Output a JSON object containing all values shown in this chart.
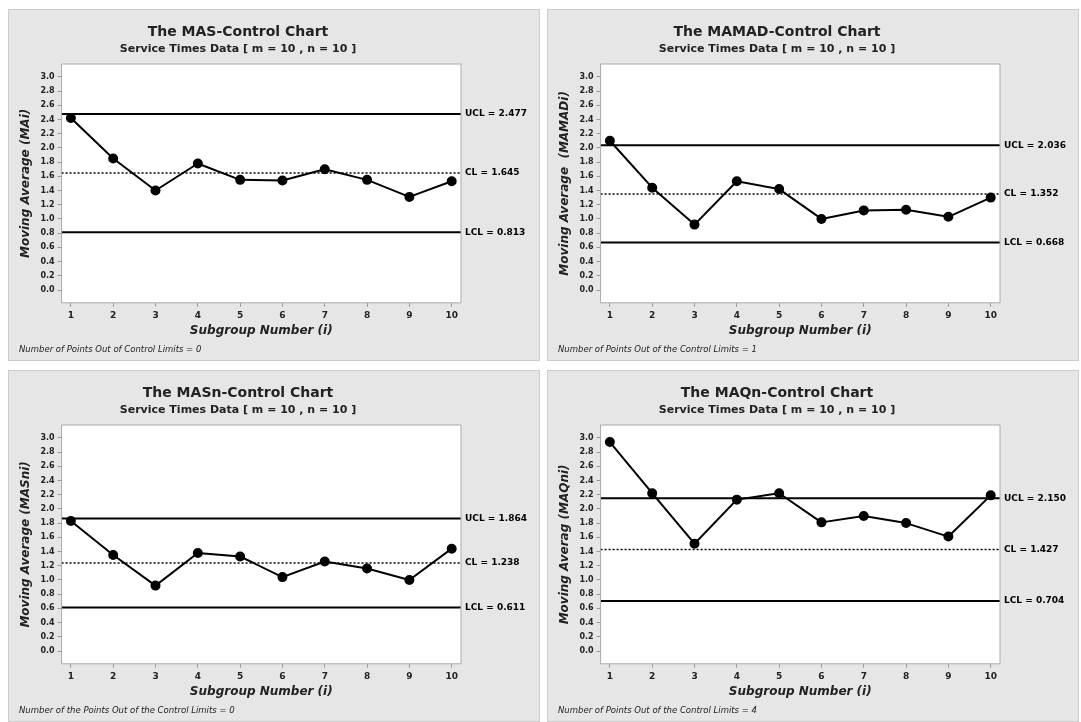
{
  "chart_data": [
    {
      "type": "line",
      "title": "The MAS-Control Chart",
      "subtitle": "Service Times Data [ m = 10 , n = 10 ]",
      "xlabel": "Subgroup Number (i)",
      "ylabel": "Moving Average (MAi)",
      "x": [
        1,
        2,
        3,
        4,
        5,
        6,
        7,
        8,
        9,
        10
      ],
      "series": [
        {
          "color": "#000000",
          "values": [
            2.42,
            1.85,
            1.4,
            1.78,
            1.55,
            1.54,
            1.7,
            1.55,
            1.31,
            1.53
          ]
        }
      ],
      "xlim": [
        0.78,
        10.22
      ],
      "xticks": [
        1,
        2,
        3,
        4,
        5,
        6,
        7,
        8,
        9,
        10
      ],
      "ylim": [
        -0.18,
        3.18
      ],
      "yticks": [
        {
          "value": 0,
          "label": "0.0"
        },
        0.2,
        0.4,
        0.6,
        0.8,
        {
          "value": 1,
          "label": "1.0"
        },
        1.2,
        1.4,
        1.6,
        1.8,
        {
          "value": 2,
          "label": "2.0"
        },
        2.2,
        2.4,
        2.6,
        2.8,
        {
          "value": 3,
          "label": "3.0"
        }
      ],
      "ref_lines": [
        {
          "axis": "y",
          "value": 2.477,
          "label": "UCL = 2.477",
          "line_style": "solid"
        },
        {
          "axis": "y",
          "value": 1.645,
          "label": "CL = 1.645",
          "line_style": "dotted"
        },
        {
          "axis": "y",
          "value": 0.813,
          "label": "LCL = 0.813",
          "line_style": "solid"
        }
      ],
      "annotations": [
        "Number of Points Out of Control Limits = 0"
      ],
      "grid": false,
      "legend": false,
      "marker": "circle",
      "line_style": "solid"
    },
    {
      "type": "line",
      "title": "The MAMAD-Control Chart",
      "subtitle": "Service Times Data [ m = 10 , n = 10 ]",
      "xlabel": "Subgroup Number (i)",
      "ylabel": "Moving Average  (MAMADi)",
      "x": [
        1,
        2,
        3,
        4,
        5,
        6,
        7,
        8,
        9,
        10
      ],
      "series": [
        {
          "color": "#000000",
          "values": [
            2.1,
            1.44,
            0.92,
            1.53,
            1.42,
            1.0,
            1.12,
            1.13,
            1.03,
            1.3
          ]
        }
      ],
      "xlim": [
        0.78,
        10.22
      ],
      "xticks": [
        1,
        2,
        3,
        4,
        5,
        6,
        7,
        8,
        9,
        10
      ],
      "ylim": [
        -0.18,
        3.18
      ],
      "yticks": [
        {
          "value": 0,
          "label": "0.0"
        },
        0.2,
        0.4,
        0.6,
        0.8,
        {
          "value": 1,
          "label": "1.0"
        },
        1.2,
        1.4,
        1.6,
        1.8,
        {
          "value": 2,
          "label": "2.0"
        },
        2.2,
        2.4,
        2.6,
        2.8,
        {
          "value": 3,
          "label": "3.0"
        }
      ],
      "ref_lines": [
        {
          "axis": "y",
          "value": 2.036,
          "label": "UCL = 2.036",
          "line_style": "solid"
        },
        {
          "axis": "y",
          "value": 1.352,
          "label": "CL = 1.352",
          "line_style": "dotted"
        },
        {
          "axis": "y",
          "value": 0.668,
          "label": "LCL = 0.668",
          "line_style": "solid"
        }
      ],
      "annotations": [
        "Number of Points Out of the Control Limits = 1"
      ],
      "grid": false,
      "legend": false,
      "marker": "circle",
      "line_style": "solid"
    },
    {
      "type": "line",
      "title": "The MASn-Control Chart",
      "subtitle": "Service Times Data [ m = 10 , n = 10 ]",
      "xlabel": "Subgroup Number (i)",
      "ylabel": "Moving Average (MASni)",
      "x": [
        1,
        2,
        3,
        4,
        5,
        6,
        7,
        8,
        9,
        10
      ],
      "series": [
        {
          "color": "#000000",
          "values": [
            1.83,
            1.35,
            0.92,
            1.38,
            1.33,
            1.04,
            1.26,
            1.16,
            1.0,
            1.44
          ]
        }
      ],
      "xlim": [
        0.78,
        10.22
      ],
      "xticks": [
        1,
        2,
        3,
        4,
        5,
        6,
        7,
        8,
        9,
        10
      ],
      "ylim": [
        -0.18,
        3.18
      ],
      "yticks": [
        {
          "value": 0,
          "label": "0.0"
        },
        0.2,
        0.4,
        0.6,
        0.8,
        {
          "value": 1,
          "label": "1.0"
        },
        1.2,
        1.4,
        1.6,
        1.8,
        {
          "value": 2,
          "label": "2.0"
        },
        2.2,
        2.4,
        2.6,
        2.8,
        {
          "value": 3,
          "label": "3.0"
        }
      ],
      "ref_lines": [
        {
          "axis": "y",
          "value": 1.864,
          "label": "UCL = 1.864",
          "line_style": "solid"
        },
        {
          "axis": "y",
          "value": 1.238,
          "label": "CL = 1.238",
          "line_style": "dotted"
        },
        {
          "axis": "y",
          "value": 0.611,
          "label": "LCL = 0.611",
          "line_style": "solid"
        }
      ],
      "annotations": [
        "Number of the Points Out of the Control Limits = 0"
      ],
      "grid": false,
      "legend": false,
      "marker": "circle",
      "line_style": "solid"
    },
    {
      "type": "line",
      "title": "The MAQn-Control Chart",
      "subtitle": "Service Times Data [ m = 10 , n = 10 ]",
      "xlabel": "Subgroup Number (i)",
      "ylabel": "Moving Averag (MAQni)",
      "x": [
        1,
        2,
        3,
        4,
        5,
        6,
        7,
        8,
        9,
        10
      ],
      "series": [
        {
          "color": "#000000",
          "values": [
            2.94,
            2.22,
            1.51,
            2.13,
            2.22,
            1.81,
            1.9,
            1.8,
            1.61,
            2.19
          ]
        }
      ],
      "xlim": [
        0.78,
        10.22
      ],
      "xticks": [
        1,
        2,
        3,
        4,
        5,
        6,
        7,
        8,
        9,
        10
      ],
      "ylim": [
        -0.18,
        3.18
      ],
      "yticks": [
        {
          "value": 0,
          "label": "0.0"
        },
        0.2,
        0.4,
        0.6,
        0.8,
        {
          "value": 1,
          "label": "1.0"
        },
        1.2,
        1.4,
        1.6,
        1.8,
        {
          "value": 2,
          "label": "2.0"
        },
        2.2,
        2.4,
        2.6,
        2.8,
        {
          "value": 3,
          "label": "3.0"
        }
      ],
      "ref_lines": [
        {
          "axis": "y",
          "value": 2.15,
          "label": "UCL = 2.150",
          "line_style": "solid"
        },
        {
          "axis": "y",
          "value": 1.427,
          "label": "CL = 1.427",
          "line_style": "dotted"
        },
        {
          "axis": "y",
          "value": 0.704,
          "label": "LCL = 0.704",
          "line_style": "solid"
        }
      ],
      "annotations": [
        "Number of Points Out of the Control Limits = 4"
      ],
      "grid": false,
      "legend": false,
      "marker": "circle",
      "line_style": "solid"
    }
  ]
}
